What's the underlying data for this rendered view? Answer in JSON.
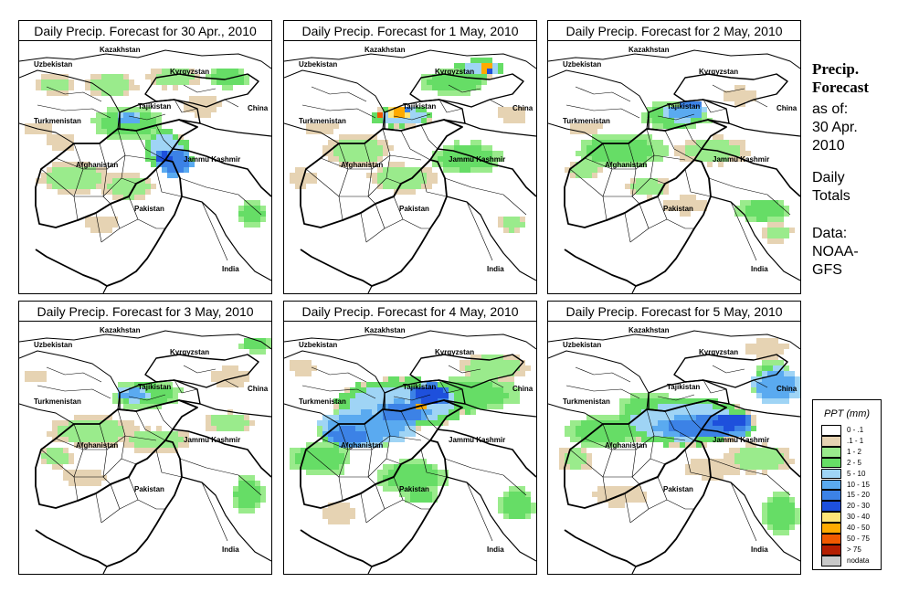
{
  "panels": [
    {
      "title": "Daily Precip. Forecast for  30 Apr., 2010"
    },
    {
      "title": "Daily Precip. Forecast for  1 May, 2010"
    },
    {
      "title": "Daily Precip. Forecast for  2 May, 2010"
    },
    {
      "title": "Daily Precip. Forecast for  3 May, 2010"
    },
    {
      "title": "Daily Precip. Forecast for  4 May, 2010"
    },
    {
      "title": "Daily Precip. Forecast for  5 May, 2010"
    }
  ],
  "map_labels": {
    "kazakhstan": "Kazakhstan",
    "uzbekistan": "Uzbekistan",
    "kyrgyzstan": "Kyrgyzstan",
    "tajikistan": "Tajikistan",
    "china": "China",
    "turkmenistan": "Turkmenistan",
    "afghanistan": "Afghanistan",
    "jammu_kashmir": "Jammu Kashmir",
    "pakistan": "Pakistan",
    "india": "India"
  },
  "side": {
    "title_line1": "Precip.",
    "title_line2": "Forecast",
    "as_of_1": "as of:",
    "as_of_2": "30 Apr.",
    "as_of_3": "2010",
    "daily_1": "Daily",
    "daily_2": "Totals",
    "data_1": "Data:",
    "data_2": "NOAA-",
    "data_3": "GFS"
  },
  "legend": {
    "title": "PPT (mm)",
    "bins": [
      {
        "label": "0 - .1",
        "color": "#ffffff"
      },
      {
        "label": ".1 - 1",
        "color": "#e6d3b3"
      },
      {
        "label": "1 - 2",
        "color": "#9aeb8c"
      },
      {
        "label": "2 - 5",
        "color": "#66dd66"
      },
      {
        "label": "5 - 10",
        "color": "#9fd4f5"
      },
      {
        "label": "10 - 15",
        "color": "#5aaaf0"
      },
      {
        "label": "15 - 20",
        "color": "#3c82e6"
      },
      {
        "label": "20 - 30",
        "color": "#1e50dc"
      },
      {
        "label": "30 - 40",
        "color": "#ffe678"
      },
      {
        "label": "40 - 50",
        "color": "#ffaa00"
      },
      {
        "label": "50 - 75",
        "color": "#f05a00"
      },
      {
        "label": "> 75",
        "color": "#b41e00"
      },
      {
        "label": "nodata",
        "color": "#c8c8c8"
      }
    ]
  }
}
